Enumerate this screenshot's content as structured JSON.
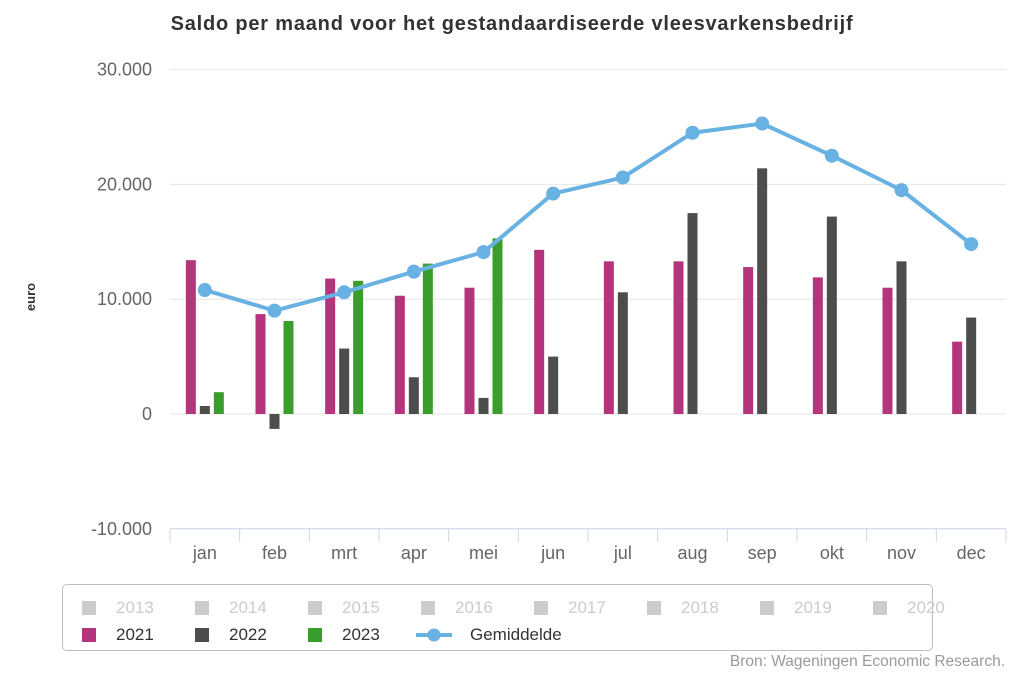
{
  "chart_data": {
    "type": "bar+line",
    "title": "Saldo per maand voor het gestandaardiseerde vleesvarkensbedrijf",
    "ylabel": "euro",
    "categories": [
      "jan",
      "feb",
      "mrt",
      "apr",
      "mei",
      "jun",
      "jul",
      "aug",
      "sep",
      "okt",
      "nov",
      "dec"
    ],
    "yticks": [
      {
        "value": 30000,
        "label": "30.000"
      },
      {
        "value": 20000,
        "label": "20.000"
      },
      {
        "value": 10000,
        "label": "10.000"
      },
      {
        "value": 0,
        "label": "0"
      },
      {
        "value": -10000,
        "label": "-10.000"
      }
    ],
    "ylim": [
      -10000,
      30000
    ],
    "grid": true,
    "legend_position": "bottom",
    "series": [
      {
        "name": "2021",
        "type": "bar",
        "color": "#b4357b",
        "values": [
          13400,
          8700,
          11800,
          10300,
          11000,
          14300,
          13300,
          13300,
          12800,
          11900,
          11000,
          6300
        ]
      },
      {
        "name": "2022",
        "type": "bar",
        "color": "#4d4d4d",
        "values": [
          700,
          -1300,
          5700,
          3200,
          1400,
          5000,
          10600,
          17500,
          21400,
          17200,
          13300,
          8400
        ]
      },
      {
        "name": "2023",
        "type": "bar",
        "color": "#3a9e2c",
        "values": [
          1900,
          8100,
          11600,
          13100,
          15300,
          null,
          null,
          null,
          null,
          null,
          null,
          null
        ]
      },
      {
        "name": "Gemiddelde",
        "type": "line",
        "color": "#68b1e3",
        "values": [
          10800,
          9000,
          10600,
          12400,
          14100,
          19200,
          20600,
          24500,
          25300,
          22500,
          19500,
          14800
        ]
      }
    ],
    "legend_disabled_items": [
      "2013",
      "2014",
      "2015",
      "2016",
      "2017",
      "2018",
      "2019",
      "2020"
    ],
    "legend_disabled_color": "#cccccc",
    "colors": {
      "gridline": "#e6e6e6",
      "axis_line": "#ccd6eb",
      "tick_label": "#666666",
      "title": "#333333"
    },
    "source": "Bron: Wageningen Economic Research."
  }
}
